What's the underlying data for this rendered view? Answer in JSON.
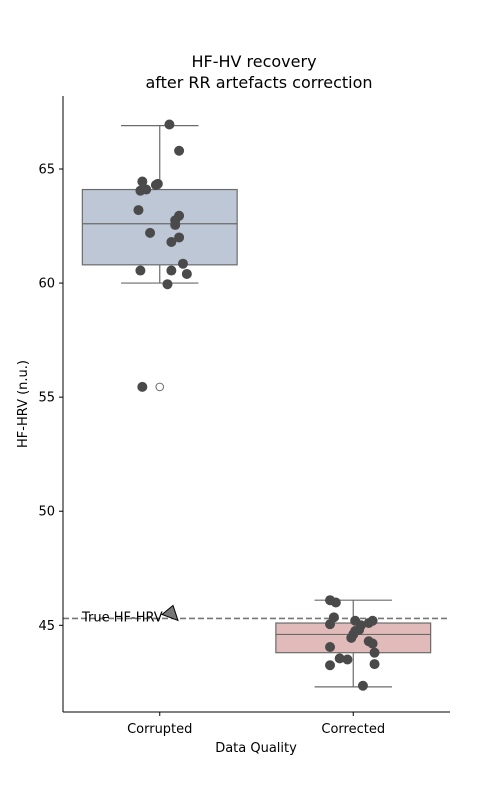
{
  "chart_data": {
    "type": "box",
    "title": [
      "HF-HV recovery",
      "after RR artefacts correction"
    ],
    "xlabel": "Data Quality",
    "ylabel": "HF-HRV (n.u.)",
    "ylim": [
      41.2,
      68.2
    ],
    "yticks": [
      45,
      50,
      55,
      60,
      65
    ],
    "categories": [
      "Corrupted",
      "Corrected"
    ],
    "reference_line": {
      "label": "True HF-HRV",
      "value": 45.3,
      "color": "#777777"
    },
    "boxes": [
      {
        "category": "Corrupted",
        "color": "#bec7d6",
        "q1": 60.8,
        "median": 62.6,
        "q3": 64.1,
        "whisker_low": 60.0,
        "whisker_high": 66.9,
        "outliers": [
          55.45
        ]
      },
      {
        "category": "Corrected",
        "color": "#e0bbb9",
        "q1": 43.8,
        "median": 44.6,
        "q3": 45.1,
        "whisker_low": 42.3,
        "whisker_high": 46.1,
        "outliers": []
      }
    ],
    "points": [
      {
        "category": "Corrupted",
        "values": [
          66.95,
          65.8,
          64.45,
          64.35,
          64.3,
          64.1,
          64.05,
          63.2,
          62.95,
          62.75,
          62.55,
          62.2,
          62.0,
          61.8,
          60.85,
          60.55,
          60.55,
          60.4,
          59.95,
          55.45
        ],
        "jitter": [
          0.05,
          0.1,
          -0.09,
          -0.01,
          -0.02,
          -0.07,
          -0.1,
          -0.11,
          0.1,
          0.08,
          0.08,
          -0.05,
          0.1,
          0.06,
          0.12,
          -0.1,
          0.06,
          0.14,
          0.04,
          -0.09
        ]
      },
      {
        "category": "Corrected",
        "values": [
          46.1,
          46.0,
          45.35,
          45.2,
          45.2,
          45.1,
          45.05,
          45.0,
          44.8,
          44.75,
          44.6,
          44.45,
          44.3,
          44.2,
          44.05,
          43.8,
          43.55,
          43.5,
          43.3,
          43.25,
          42.35
        ],
        "jitter": [
          -0.12,
          -0.09,
          -0.1,
          0.01,
          0.1,
          0.08,
          -0.12,
          0.04,
          0.03,
          0.01,
          0.0,
          -0.01,
          0.08,
          0.1,
          -0.12,
          0.11,
          -0.07,
          -0.03,
          0.11,
          -0.12,
          0.05
        ]
      }
    ],
    "colors": {
      "point": "#4a4a4a",
      "box_edge": "#6b6b6b",
      "axis": "#000000"
    }
  }
}
